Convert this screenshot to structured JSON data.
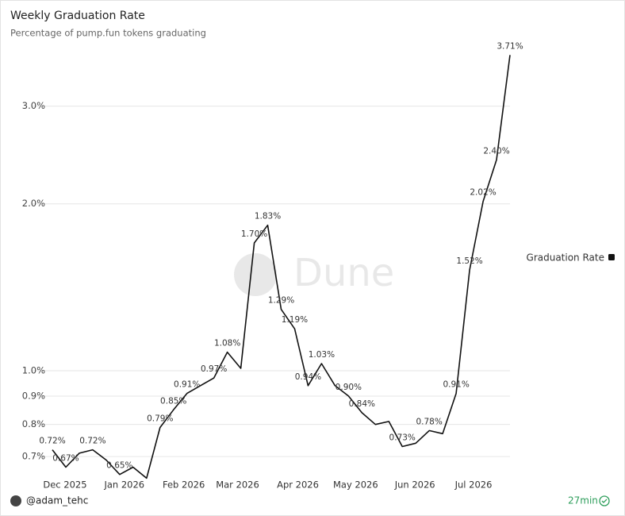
{
  "chart_data": {
    "type": "line",
    "title": "Weekly Graduation Rate",
    "subtitle": "Percentage of pump.fun tokens graduating",
    "watermark": "Dune",
    "log_scale": true,
    "grid": true,
    "legend_position": "right",
    "xlim": [
      0,
      34
    ],
    "xticks": [
      {
        "value": 0.94,
        "label": "Dec 2025"
      },
      {
        "value": 5.35,
        "label": "Jan 2026"
      },
      {
        "value": 9.76,
        "label": "Feb 2026"
      },
      {
        "value": 13.76,
        "label": "Mar 2026"
      },
      {
        "value": 18.24,
        "label": "Apr 2026"
      },
      {
        "value": 22.53,
        "label": "May 2026"
      },
      {
        "value": 26.94,
        "label": "Jun 2026"
      },
      {
        "value": 31.29,
        "label": "Jul 2026"
      }
    ],
    "ylim": [
      0.62,
      3.8
    ],
    "yticks": [
      {
        "value": 0.7,
        "label": "0.7%"
      },
      {
        "value": 0.8,
        "label": "0.8%"
      },
      {
        "value": 0.9,
        "label": "0.9%"
      },
      {
        "value": 1,
        "label": "1.0%"
      },
      {
        "value": 2,
        "label": "2.0%"
      },
      {
        "value": 3,
        "label": "3.0%"
      }
    ],
    "series": [
      {
        "name": "Graduation Rate",
        "color": "#111111",
        "values": [
          0.72,
          0.67,
          0.71,
          0.72,
          0.69,
          0.65,
          0.67,
          0.64,
          0.79,
          0.85,
          0.91,
          0.94,
          0.97,
          1.08,
          1.01,
          1.7,
          1.83,
          1.29,
          1.19,
          0.94,
          1.03,
          0.94,
          0.9,
          0.84,
          0.8,
          0.81,
          0.73,
          0.74,
          0.78,
          0.77,
          0.91,
          1.52,
          2.02,
          2.4,
          3.71
        ],
        "value_labels": [
          "0.72%",
          "0.67%",
          null,
          "0.72%",
          null,
          "0.65%",
          null,
          null,
          "0.79%",
          "0.85%",
          "0.91%",
          null,
          "0.97%",
          "1.08%",
          null,
          "1.70%",
          "1.83%",
          "1.29%",
          "1.19%",
          "0.94%",
          "1.03%",
          null,
          "0.90%",
          "0.84%",
          null,
          null,
          "0.73%",
          null,
          "0.78%",
          null,
          "0.91%",
          "1.52%",
          "2.02%",
          "2.40%",
          "3.71%"
        ]
      }
    ]
  },
  "footer": {
    "author": "@adam_tehc",
    "age": "27min"
  }
}
